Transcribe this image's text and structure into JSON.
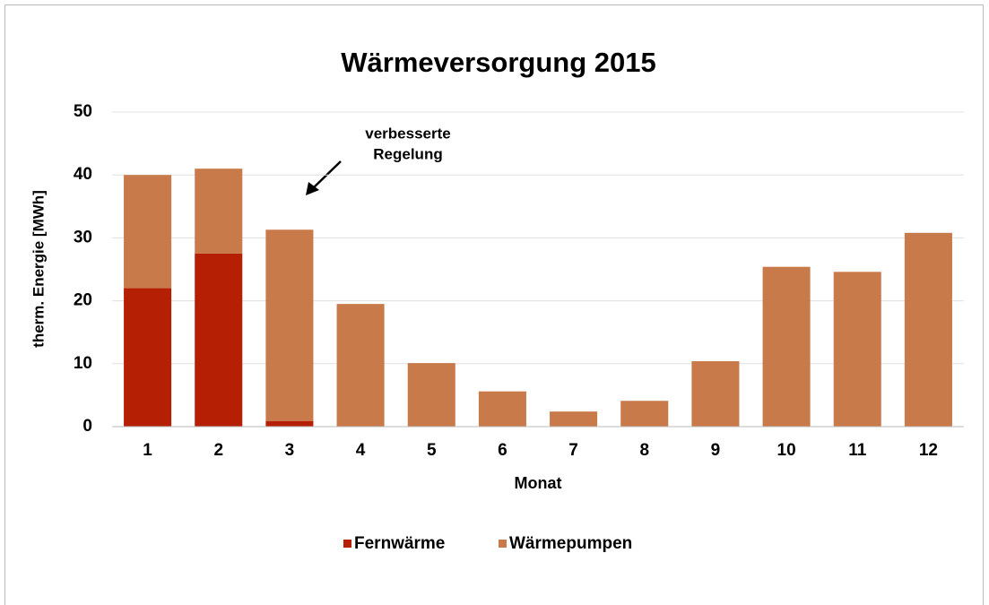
{
  "chart_data": {
    "type": "bar",
    "stacked": true,
    "title": "Wärmeversorgung 2015",
    "x_label": "Monat",
    "y_label": "therm. Energie [MWh]",
    "annotation": [
      "verbesserte",
      "Regelung"
    ],
    "categories": [
      "1",
      "2",
      "3",
      "4",
      "5",
      "6",
      "7",
      "8",
      "9",
      "10",
      "11",
      "12"
    ],
    "series": [
      {
        "name": "Fernwärme",
        "color": "#b52005",
        "values": [
          22,
          27.5,
          0.9,
          0,
          0,
          0,
          0,
          0,
          0,
          0,
          0,
          0
        ]
      },
      {
        "name": "Wärmepumpen",
        "color": "#c97a4a",
        "values": [
          18,
          13.5,
          30.4,
          19.5,
          10.1,
          5.6,
          2.4,
          4.1,
          10.4,
          25.4,
          24.6,
          30.8
        ]
      }
    ],
    "ylim": [
      0,
      50
    ],
    "yticks": [
      0,
      10,
      20,
      30,
      40,
      50
    ],
    "grid": true,
    "legend": "bottom"
  }
}
